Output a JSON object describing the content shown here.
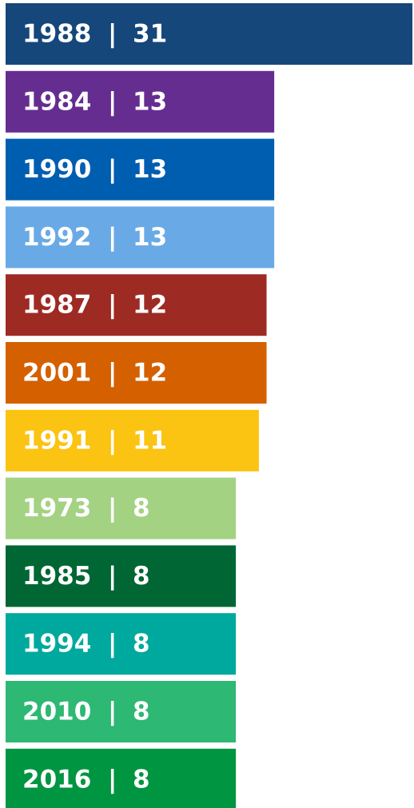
{
  "chart_data": {
    "type": "bar",
    "orientation": "horizontal",
    "categories": [
      "1988",
      "1984",
      "1990",
      "1992",
      "1987",
      "2001",
      "1991",
      "1973",
      "1985",
      "1994",
      "2010",
      "2016"
    ],
    "values": [
      31,
      13,
      13,
      13,
      12,
      12,
      11,
      8,
      8,
      8,
      8,
      8
    ],
    "colors": [
      "#15477b",
      "#662d91",
      "#005eb0",
      "#69aae6",
      "#9e2a24",
      "#d46000",
      "#fbc312",
      "#a3d283",
      "#006633",
      "#00a99d",
      "#2db873",
      "#009540"
    ],
    "label_separator": "|",
    "xlim": [
      -22,
      31
    ]
  }
}
